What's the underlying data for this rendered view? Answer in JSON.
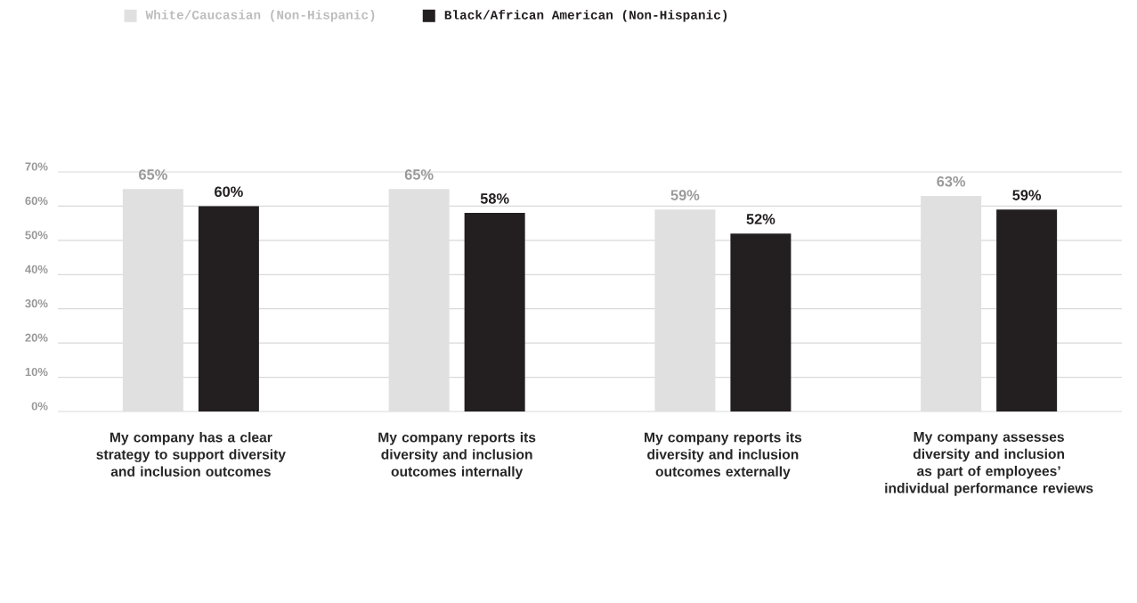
{
  "chart_data": {
    "type": "bar",
    "categories": [
      "My company has a clear strategy to support diversity and inclusion outcomes",
      "My company reports its diversity and inclusion outcomes internally",
      "My company reports its diversity and inclusion outcomes externally",
      "My company assesses diversity and inclusion as part of employees’ individual performance reviews"
    ],
    "series": [
      {
        "name": "White/Caucasian (Non-Hispanic)",
        "color": "#e0e0e1",
        "values": [
          65,
          65,
          59,
          63
        ],
        "value_labels": [
          "65%",
          "65%",
          "59%",
          "63%"
        ]
      },
      {
        "name": "Black/African American (Non-Hispanic)",
        "color": "#231f20",
        "values": [
          60,
          58,
          52,
          59
        ],
        "value_labels": [
          "60%",
          "58%",
          "52%",
          "59%"
        ]
      }
    ],
    "ylim": [
      0,
      70
    ],
    "yticks": [
      {
        "value": 0,
        "label": "0%"
      },
      {
        "value": 10,
        "label": "10%"
      },
      {
        "value": 20,
        "label": "20%"
      },
      {
        "value": 30,
        "label": "30%"
      },
      {
        "value": 40,
        "label": "40%"
      },
      {
        "value": 50,
        "label": "50%"
      },
      {
        "value": 60,
        "label": "60%"
      },
      {
        "value": 70,
        "label": "70%"
      }
    ],
    "grid": "y",
    "legend": "top left"
  }
}
